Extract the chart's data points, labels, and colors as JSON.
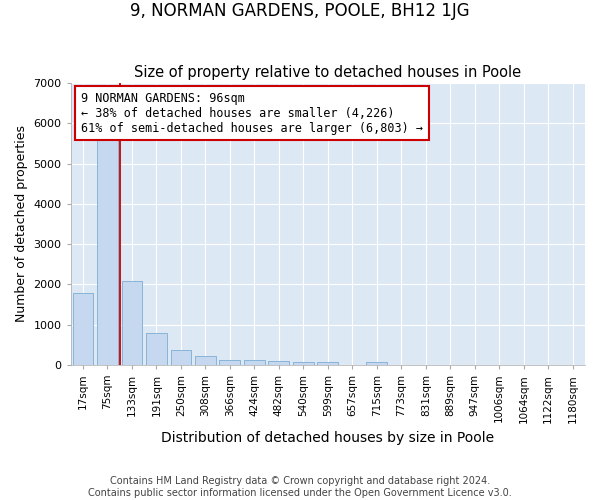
{
  "title": "9, NORMAN GARDENS, POOLE, BH12 1JG",
  "subtitle": "Size of property relative to detached houses in Poole",
  "xlabel": "Distribution of detached houses by size in Poole",
  "ylabel": "Number of detached properties",
  "categories": [
    "17sqm",
    "75sqm",
    "133sqm",
    "191sqm",
    "250sqm",
    "308sqm",
    "366sqm",
    "424sqm",
    "482sqm",
    "540sqm",
    "599sqm",
    "657sqm",
    "715sqm",
    "773sqm",
    "831sqm",
    "889sqm",
    "947sqm",
    "1006sqm",
    "1064sqm",
    "1122sqm",
    "1180sqm"
  ],
  "values": [
    1780,
    5780,
    2080,
    800,
    360,
    230,
    130,
    115,
    100,
    80,
    70,
    0,
    70,
    0,
    0,
    0,
    0,
    0,
    0,
    0,
    0
  ],
  "bar_color": "#c5d8f0",
  "bar_edge_color": "#7aadd4",
  "annotation_text": "9 NORMAN GARDENS: 96sqm\n← 38% of detached houses are smaller (4,226)\n61% of semi-detached houses are larger (6,803) →",
  "annotation_box_color": "#ffffff",
  "annotation_box_edge_color": "#cc0000",
  "ylim": [
    0,
    7000
  ],
  "yticks": [
    0,
    1000,
    2000,
    3000,
    4000,
    5000,
    6000,
    7000
  ],
  "footer1": "Contains HM Land Registry data © Crown copyright and database right 2024.",
  "footer2": "Contains public sector information licensed under the Open Government Licence v3.0.",
  "fig_background_color": "#ffffff",
  "plot_background_color": "#dde8f5",
  "title_fontsize": 12,
  "subtitle_fontsize": 10.5,
  "xlabel_fontsize": 10,
  "ylabel_fontsize": 9,
  "tick_fontsize": 7.5,
  "footer_fontsize": 7,
  "grid_color": "#ffffff",
  "red_line_color": "#cc0000",
  "red_line_x": 1.5
}
